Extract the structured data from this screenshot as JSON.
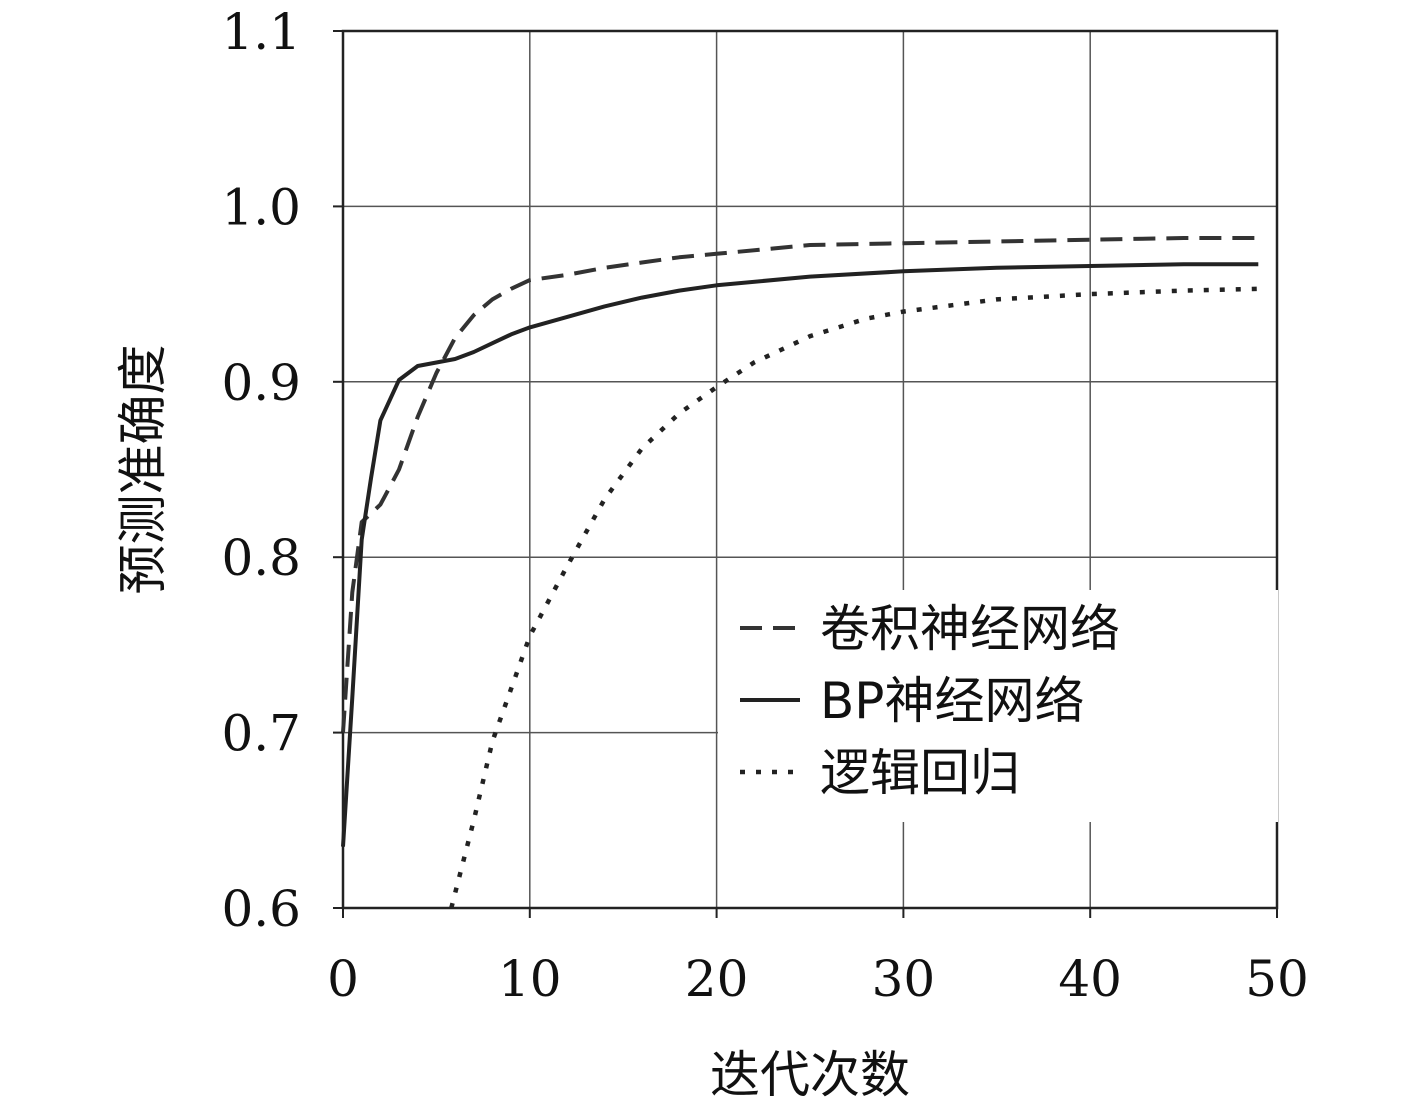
{
  "chart_data": {
    "type": "line",
    "xlabel": "迭代次数",
    "ylabel": "预测准确度",
    "xlim": [
      0,
      50
    ],
    "ylim": [
      0.6,
      1.1
    ],
    "xticks": [
      "0",
      "10",
      "20",
      "30",
      "40",
      "50"
    ],
    "yticks": [
      "0.6",
      "0.7",
      "0.8",
      "0.9",
      "1.0",
      "1.1"
    ],
    "grid": true,
    "legend_position": "lower-right",
    "series": [
      {
        "name": "卷积神经网络",
        "style": "dashed",
        "color": "#333333",
        "x": [
          0,
          0.5,
          1,
          2,
          3,
          4,
          5,
          6,
          7,
          8,
          9,
          10,
          12,
          14,
          16,
          18,
          20,
          25,
          30,
          35,
          40,
          45,
          49
        ],
        "y": [
          0.7,
          0.78,
          0.82,
          0.83,
          0.85,
          0.88,
          0.905,
          0.925,
          0.938,
          0.947,
          0.953,
          0.958,
          0.961,
          0.965,
          0.968,
          0.971,
          0.973,
          0.978,
          0.979,
          0.98,
          0.981,
          0.982,
          0.982
        ]
      },
      {
        "name": "BP神经网络",
        "style": "solid",
        "color": "#222222",
        "x": [
          0,
          0.5,
          1,
          1.5,
          2,
          3,
          4,
          5,
          6,
          7,
          8,
          9,
          10,
          12,
          14,
          16,
          18,
          20,
          25,
          30,
          35,
          40,
          45,
          49
        ],
        "y": [
          0.635,
          0.72,
          0.81,
          0.845,
          0.878,
          0.901,
          0.909,
          0.911,
          0.913,
          0.917,
          0.922,
          0.927,
          0.931,
          0.937,
          0.943,
          0.948,
          0.952,
          0.955,
          0.96,
          0.963,
          0.965,
          0.966,
          0.967,
          0.967
        ]
      },
      {
        "name": "逻辑回归",
        "style": "dotted",
        "color": "#222222",
        "x": [
          5.8,
          7,
          8,
          9,
          10,
          12,
          14,
          16,
          18,
          20,
          22,
          25,
          28,
          30,
          35,
          40,
          45,
          49
        ],
        "y": [
          0.6,
          0.65,
          0.695,
          0.725,
          0.755,
          0.795,
          0.833,
          0.862,
          0.882,
          0.897,
          0.911,
          0.926,
          0.936,
          0.94,
          0.947,
          0.95,
          0.952,
          0.953
        ]
      }
    ]
  }
}
